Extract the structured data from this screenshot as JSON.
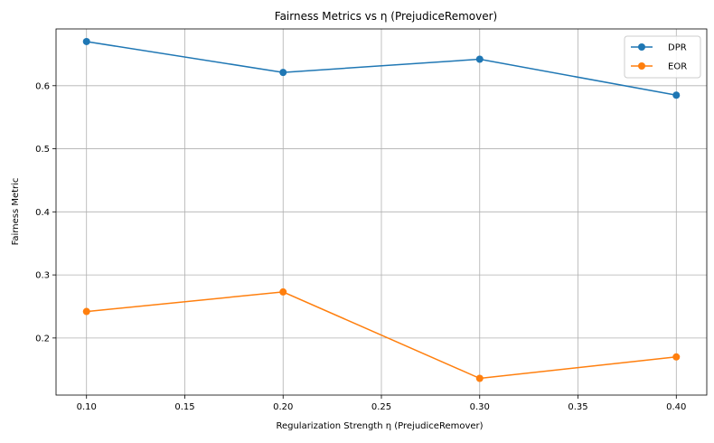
{
  "chart_data": {
    "type": "line",
    "title": "Fairness Metrics vs η (PrejudiceRemover)",
    "xlabel": "Regularization Strength η (PrejudiceRemover)",
    "ylabel": "Fairness Metric",
    "x": [
      0.1,
      0.2,
      0.3,
      0.4
    ],
    "xlim": [
      0.0845,
      0.4155
    ],
    "ylim": [
      0.1095,
      0.69
    ],
    "xticks": [
      "0.10",
      "0.15",
      "0.20",
      "0.25",
      "0.30",
      "0.35",
      "0.40"
    ],
    "yticks": [
      "0.2",
      "0.3",
      "0.4",
      "0.5",
      "0.6"
    ],
    "grid": true,
    "legend_position": "top-right",
    "series": [
      {
        "name": "DPR",
        "color": "#1f77b4",
        "values": [
          0.67,
          0.621,
          0.642,
          0.585
        ]
      },
      {
        "name": "EOR",
        "color": "#ff7f0e",
        "values": [
          0.242,
          0.273,
          0.136,
          0.17
        ]
      }
    ]
  }
}
